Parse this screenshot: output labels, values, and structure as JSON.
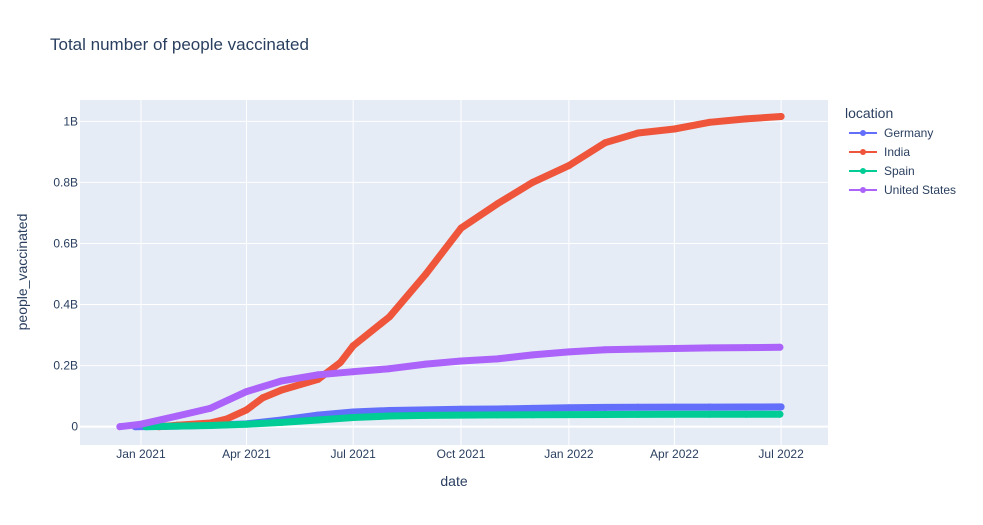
{
  "chart_data": {
    "type": "line",
    "title": "Total number of people vaccinated",
    "xlabel": "date",
    "ylabel": "people_vaccinated",
    "x_range": [
      "2020-11-10",
      "2022-08-10"
    ],
    "ylim": [
      -60000000,
      1070000000
    ],
    "x_ticks": [
      {
        "date": "2021-01-01",
        "label": "Jan 2021"
      },
      {
        "date": "2021-04-01",
        "label": "Apr 2021"
      },
      {
        "date": "2021-07-01",
        "label": "Jul 2021"
      },
      {
        "date": "2021-10-01",
        "label": "Oct 2021"
      },
      {
        "date": "2022-01-01",
        "label": "Jan 2022"
      },
      {
        "date": "2022-04-01",
        "label": "Apr 2022"
      },
      {
        "date": "2022-07-01",
        "label": "Jul 2022"
      }
    ],
    "y_ticks": [
      {
        "value": 0,
        "label": "0"
      },
      {
        "value": 200000000,
        "label": "0.2B"
      },
      {
        "value": 400000000,
        "label": "0.4B"
      },
      {
        "value": 600000000,
        "label": "0.6B"
      },
      {
        "value": 800000000,
        "label": "0.8B"
      },
      {
        "value": 1000000000,
        "label": "1B"
      }
    ],
    "grid": true,
    "legend": {
      "title": "location",
      "position": "right"
    },
    "series": [
      {
        "name": "Germany",
        "color": "#636efa",
        "points": [
          [
            "2020-12-27",
            0
          ],
          [
            "2021-01-15",
            1000000
          ],
          [
            "2021-02-01",
            2000000
          ],
          [
            "2021-03-01",
            4500000
          ],
          [
            "2021-04-01",
            9000000
          ],
          [
            "2021-05-01",
            22000000
          ],
          [
            "2021-06-01",
            38000000
          ],
          [
            "2021-07-01",
            48000000
          ],
          [
            "2021-08-01",
            53000000
          ],
          [
            "2021-09-01",
            55000000
          ],
          [
            "2021-10-01",
            57000000
          ],
          [
            "2021-11-01",
            58000000
          ],
          [
            "2021-12-01",
            60000000
          ],
          [
            "2022-01-01",
            62000000
          ],
          [
            "2022-02-01",
            63000000
          ],
          [
            "2022-03-01",
            63500000
          ],
          [
            "2022-04-01",
            64000000
          ],
          [
            "2022-05-01",
            64300000
          ],
          [
            "2022-06-01",
            64500000
          ],
          [
            "2022-07-01",
            64700000
          ]
        ]
      },
      {
        "name": "India",
        "color": "#ef553b",
        "points": [
          [
            "2021-01-16",
            0
          ],
          [
            "2021-02-01",
            5000000
          ],
          [
            "2021-03-01",
            12000000
          ],
          [
            "2021-03-15",
            25000000
          ],
          [
            "2021-04-01",
            55000000
          ],
          [
            "2021-04-15",
            95000000
          ],
          [
            "2021-05-01",
            120000000
          ],
          [
            "2021-06-01",
            155000000
          ],
          [
            "2021-06-20",
            210000000
          ],
          [
            "2021-07-01",
            265000000
          ],
          [
            "2021-08-01",
            360000000
          ],
          [
            "2021-09-01",
            500000000
          ],
          [
            "2021-10-01",
            650000000
          ],
          [
            "2021-11-01",
            730000000
          ],
          [
            "2021-12-01",
            800000000
          ],
          [
            "2022-01-01",
            855000000
          ],
          [
            "2022-02-01",
            930000000
          ],
          [
            "2022-03-01",
            962000000
          ],
          [
            "2022-04-01",
            975000000
          ],
          [
            "2022-05-01",
            997000000
          ],
          [
            "2022-06-01",
            1008000000
          ],
          [
            "2022-07-01",
            1016000000
          ]
        ]
      },
      {
        "name": "Spain",
        "color": "#00cc96",
        "points": [
          [
            "2021-01-05",
            0
          ],
          [
            "2021-02-01",
            2000000
          ],
          [
            "2021-03-01",
            4000000
          ],
          [
            "2021-04-01",
            8000000
          ],
          [
            "2021-05-01",
            14000000
          ],
          [
            "2021-06-01",
            22000000
          ],
          [
            "2021-07-01",
            30000000
          ],
          [
            "2021-08-01",
            35000000
          ],
          [
            "2021-09-01",
            37000000
          ],
          [
            "2021-10-01",
            38000000
          ],
          [
            "2021-11-01",
            38500000
          ],
          [
            "2021-12-01",
            39000000
          ],
          [
            "2022-01-01",
            39500000
          ],
          [
            "2022-02-01",
            40000000
          ],
          [
            "2022-03-01",
            40300000
          ],
          [
            "2022-04-01",
            40500000
          ],
          [
            "2022-05-01",
            40600000
          ],
          [
            "2022-06-01",
            40700000
          ],
          [
            "2022-06-30",
            40800000
          ]
        ]
      },
      {
        "name": "United States",
        "color": "#ab63fa",
        "points": [
          [
            "2020-12-14",
            0
          ],
          [
            "2021-01-01",
            8000000
          ],
          [
            "2021-02-01",
            35000000
          ],
          [
            "2021-03-01",
            60000000
          ],
          [
            "2021-04-01",
            115000000
          ],
          [
            "2021-05-01",
            150000000
          ],
          [
            "2021-06-01",
            170000000
          ],
          [
            "2021-07-01",
            180000000
          ],
          [
            "2021-08-01",
            190000000
          ],
          [
            "2021-09-01",
            205000000
          ],
          [
            "2021-10-01",
            215000000
          ],
          [
            "2021-11-01",
            222000000
          ],
          [
            "2021-12-01",
            235000000
          ],
          [
            "2022-01-01",
            245000000
          ],
          [
            "2022-02-01",
            252000000
          ],
          [
            "2022-03-01",
            254000000
          ],
          [
            "2022-04-01",
            256000000
          ],
          [
            "2022-05-01",
            258000000
          ],
          [
            "2022-06-01",
            259000000
          ],
          [
            "2022-06-30",
            260000000
          ]
        ]
      }
    ]
  }
}
